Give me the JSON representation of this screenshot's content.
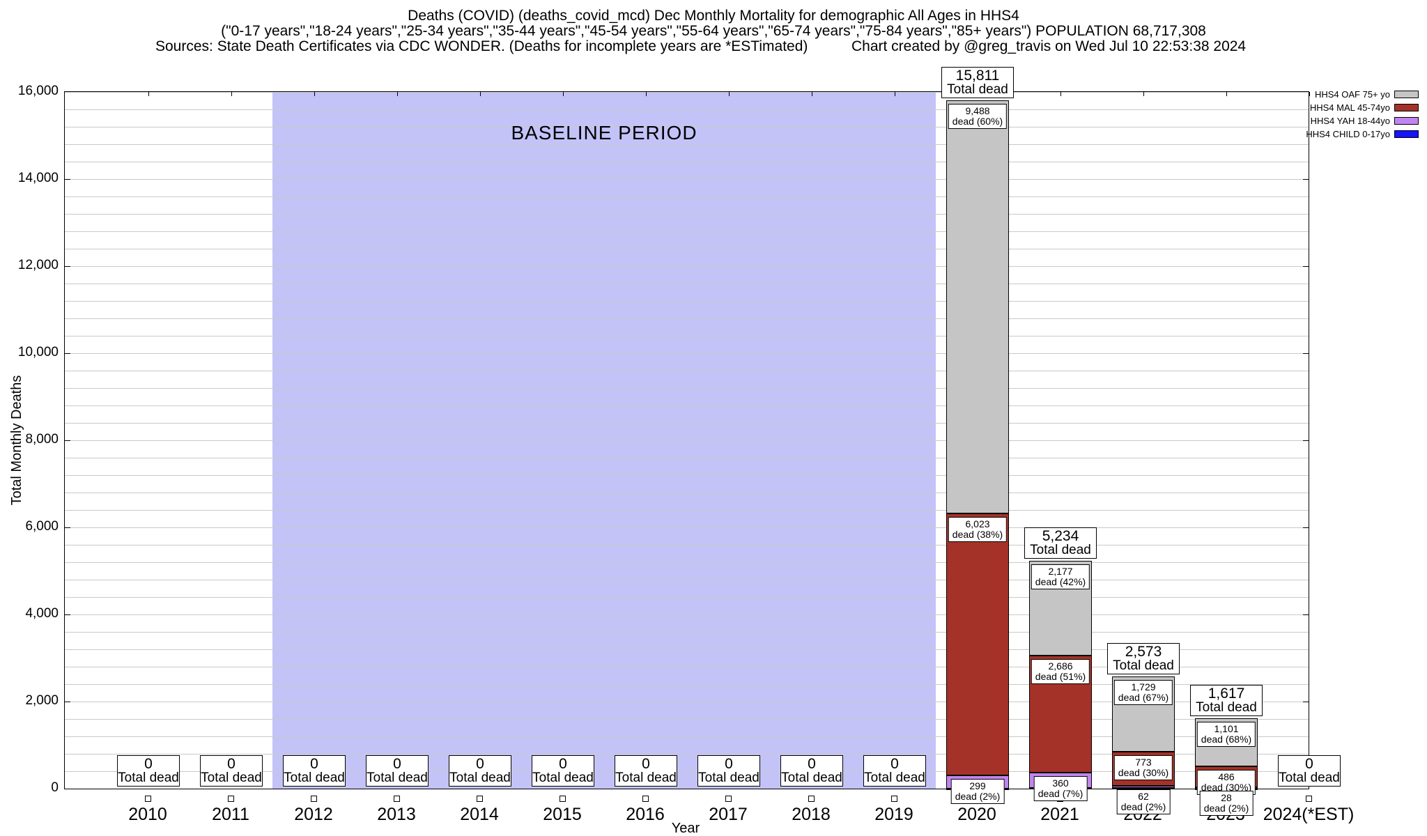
{
  "title": {
    "line1": "Deaths (COVID) (deaths_covid_mcd) Dec Monthly Mortality for demographic All Ages in HHS4",
    "line2": "(\"0-17 years\",\"18-24 years\",\"25-34 years\",\"35-44 years\",\"45-54 years\",\"55-64 years\",\"65-74 years\",\"75-84 years\",\"85+ years\") POPULATION 68,717,308",
    "line3_left": "Sources: State Death Certificates via CDC WONDER. (Deaths for incomplete years are *ESTimated)",
    "line3_right": "Chart created by @greg_travis on Wed Jul 10 22:53:38 2024"
  },
  "chart_data": {
    "type": "bar",
    "stacked": true,
    "title": "Deaths (COVID) (deaths_covid_mcd) Dec Monthly Mortality for demographic All Ages in HHS4",
    "xlabel": "Year",
    "ylabel": "Total Monthly Deaths",
    "ylim": [
      0,
      16000
    ],
    "ytick_step": 2000,
    "grid": true,
    "legend_position": "top-right",
    "yticks": [
      "0",
      "2,000",
      "4,000",
      "6,000",
      "8,000",
      "10,000",
      "12,000",
      "14,000",
      "16,000"
    ],
    "categories": [
      "2010",
      "2011",
      "2012",
      "2013",
      "2014",
      "2015",
      "2016",
      "2017",
      "2018",
      "2019",
      "2020",
      "2021",
      "2022",
      "2023",
      "2024(*EST)"
    ],
    "totals": [
      0,
      0,
      0,
      0,
      0,
      0,
      0,
      0,
      0,
      0,
      15811,
      5234,
      2573,
      1617,
      0
    ],
    "totals_fmt": [
      "0",
      "0",
      "0",
      "0",
      "0",
      "0",
      "0",
      "0",
      "0",
      "0",
      "15,811",
      "5,234",
      "2,573",
      "1,617",
      "0"
    ],
    "total_box_label": "Total dead",
    "series": [
      {
        "name": "HHS4 OAF 75+ yo",
        "color": "#c5c5c5",
        "values": [
          0,
          0,
          0,
          0,
          0,
          0,
          0,
          0,
          0,
          0,
          9488,
          2177,
          1729,
          1101,
          0
        ],
        "labels": [
          null,
          null,
          null,
          null,
          null,
          null,
          null,
          null,
          null,
          null,
          {
            "l1": "9,488",
            "l2": "dead (60%)"
          },
          {
            "l1": "2,177",
            "l2": "dead (42%)"
          },
          {
            "l1": "1,729",
            "l2": "dead (67%)"
          },
          {
            "l1": "1,101",
            "l2": "dead (68%)"
          },
          null
        ]
      },
      {
        "name": "HHS4 MAL 45-74yo",
        "color": "#a53228",
        "values": [
          0,
          0,
          0,
          0,
          0,
          0,
          0,
          0,
          0,
          0,
          6023,
          2686,
          773,
          486,
          0
        ],
        "labels": [
          null,
          null,
          null,
          null,
          null,
          null,
          null,
          null,
          null,
          null,
          {
            "l1": "6,023",
            "l2": "dead (38%)"
          },
          {
            "l1": "2,686",
            "l2": "dead (51%)"
          },
          {
            "l1": "773",
            "l2": "dead (30%)"
          },
          {
            "l1": "486",
            "l2": "dead (30%)"
          },
          null
        ]
      },
      {
        "name": "HHS4 YAH 18-44yo",
        "color": "#c285f0",
        "values": [
          0,
          0,
          0,
          0,
          0,
          0,
          0,
          0,
          0,
          0,
          299,
          360,
          62,
          28,
          0
        ],
        "labels": [
          null,
          null,
          null,
          null,
          null,
          null,
          null,
          null,
          null,
          null,
          {
            "l1": "299",
            "l2": "dead (2%)"
          },
          {
            "l1": "360",
            "l2": "dead (7%)"
          },
          {
            "l1": "62",
            "l2": "dead (2%)"
          },
          {
            "l1": "28",
            "l2": "dead (2%)"
          },
          null
        ]
      },
      {
        "name": "HHS4 CHILD 0-17yo",
        "color": "#1414ff",
        "values": [
          0,
          0,
          0,
          0,
          0,
          0,
          0,
          0,
          0,
          0,
          1,
          11,
          9,
          2,
          0
        ],
        "labels": [
          null,
          null,
          null,
          null,
          null,
          null,
          null,
          null,
          null,
          null,
          null,
          null,
          null,
          null,
          null
        ]
      }
    ],
    "baseline_band": {
      "start_category": "2012",
      "end_category": "2019",
      "label": "BASELINE PERIOD",
      "color": "#c3c3f8"
    }
  }
}
